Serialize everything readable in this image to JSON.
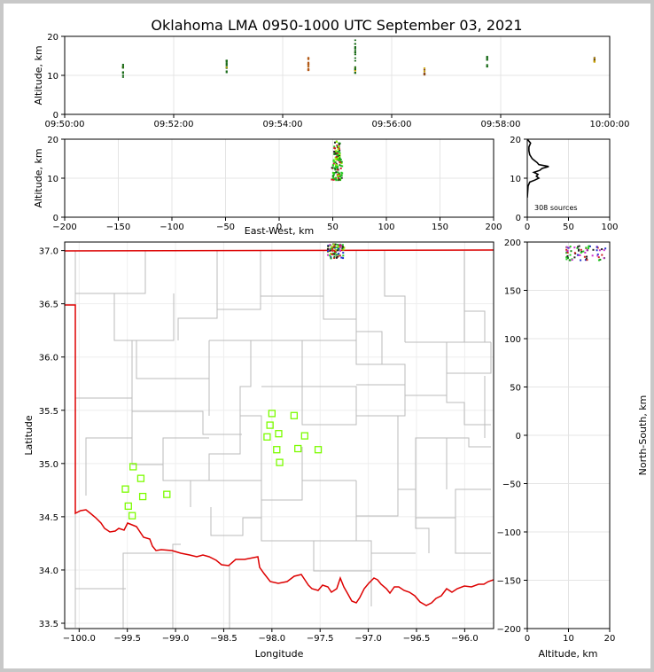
{
  "chart_data": [
    {
      "panel": "time-altitude",
      "type": "scatter",
      "title": "Oklahoma LMA 0950-1000 UTC September 03, 2021",
      "ylabel": "Altitude, km",
      "xlabel": "",
      "x_ticks": [
        "09:50:00",
        "09:52:00",
        "09:54:00",
        "09:56:00",
        "09:58:00",
        "10:00:00"
      ],
      "xlim_minutes": [
        0,
        10
      ],
      "ylim": [
        0,
        20
      ],
      "y_ticks": [
        "0",
        "10",
        "20"
      ],
      "grid": true,
      "bursts": [
        {
          "t": 1.07,
          "alt_min": 9.5,
          "alt_max": 13.0,
          "color": "#1a6b1a"
        },
        {
          "t": 2.97,
          "alt_min": 10.5,
          "alt_max": 14.0,
          "color": "#1a6b1a"
        },
        {
          "t": 4.47,
          "alt_min": 9.5,
          "alt_max": 14.8,
          "color": "#b35a1a"
        },
        {
          "t": 5.33,
          "alt_min": 10.5,
          "alt_max": 19.0,
          "color": "#1a6b1a"
        },
        {
          "t": 6.6,
          "alt_min": 10.0,
          "alt_max": 12.0,
          "color": "#8a4a1a"
        },
        {
          "t": 7.75,
          "alt_min": 11.5,
          "alt_max": 14.8,
          "color": "#1a6b1a"
        },
        {
          "t": 9.72,
          "alt_min": 12.5,
          "alt_max": 14.5,
          "color": "#5a3a1a"
        }
      ]
    },
    {
      "panel": "east-west-altitude",
      "type": "scatter",
      "xlabel": "East-West, km",
      "ylabel": "Altitude, km",
      "xlim": [
        -200,
        200
      ],
      "ylim": [
        0,
        20
      ],
      "x_ticks": [
        "−200",
        "−150",
        "−100",
        "−50",
        "0",
        "50",
        "100",
        "150",
        "200"
      ],
      "y_ticks": [
        "0",
        "10",
        "20"
      ],
      "grid": true,
      "cluster": {
        "x_center": 54,
        "x_spread": 7,
        "alt_min": 9.5,
        "alt_max": 19.5
      }
    },
    {
      "panel": "altitude-histogram",
      "type": "line",
      "xlim": [
        0,
        100
      ],
      "ylim": [
        0,
        20
      ],
      "x_ticks": [
        "0",
        "50",
        "100"
      ],
      "y_ticks": [
        "0",
        "10",
        "20"
      ],
      "annotation": "308 sources",
      "altitude_km": [
        5,
        8,
        9,
        9.5,
        10,
        10.5,
        11,
        11.5,
        12,
        12.5,
        13,
        13.5,
        14,
        14.5,
        15,
        16,
        17,
        18,
        19,
        20
      ],
      "counts": [
        0,
        1,
        3,
        9,
        14,
        11,
        13,
        8,
        15,
        18,
        26,
        14,
        12,
        9,
        6,
        3,
        2,
        2,
        4,
        0
      ]
    },
    {
      "panel": "plan-view",
      "type": "scatter",
      "xlabel": "Longitude",
      "ylabel": "Latitude",
      "xlim": [
        -100.15,
        -95.7
      ],
      "ylim": [
        33.45,
        37.08
      ],
      "x_ticks": [
        "−100.0",
        "−99.5",
        "−99.0",
        "−98.5",
        "−98.0",
        "−97.5",
        "−97.0",
        "−96.5",
        "−96.0"
      ],
      "y_ticks": [
        "33.5",
        "34.0",
        "34.5",
        "35.0",
        "35.5",
        "36.0",
        "36.5",
        "37.0"
      ],
      "stations": [
        {
          "lon": -99.52,
          "lat": 34.76
        },
        {
          "lon": -99.49,
          "lat": 34.6
        },
        {
          "lon": -99.44,
          "lat": 34.97
        },
        {
          "lon": -99.45,
          "lat": 34.51
        },
        {
          "lon": -99.36,
          "lat": 34.86
        },
        {
          "lon": -99.34,
          "lat": 34.69
        },
        {
          "lon": -99.09,
          "lat": 34.71
        },
        {
          "lon": -98.0,
          "lat": 35.47
        },
        {
          "lon": -98.02,
          "lat": 35.36
        },
        {
          "lon": -98.05,
          "lat": 35.25
        },
        {
          "lon": -97.93,
          "lat": 35.28
        },
        {
          "lon": -97.95,
          "lat": 35.13
        },
        {
          "lon": -97.92,
          "lat": 35.01
        },
        {
          "lon": -97.77,
          "lat": 35.45
        },
        {
          "lon": -97.73,
          "lat": 35.14
        },
        {
          "lon": -97.66,
          "lat": 35.26
        },
        {
          "lon": -97.52,
          "lat": 35.13
        }
      ],
      "source_cluster": {
        "lon_min": -97.42,
        "lon_max": -97.25,
        "lat_min": 36.92,
        "lat_max": 37.06
      },
      "colors": {
        "stations": "#7cfc00",
        "state_line": "#dd0000",
        "county_line": "#bbbbbb"
      }
    },
    {
      "panel": "altitude-north-south",
      "type": "scatter",
      "xlabel": "Altitude, km",
      "ylabel": "North-South, km",
      "xlim": [
        0,
        20
      ],
      "ylim": [
        -200,
        200
      ],
      "x_ticks": [
        "0",
        "10",
        "20"
      ],
      "y_ticks": [
        "−200",
        "−150",
        "−100",
        "−50",
        "0",
        "50",
        "100",
        "150",
        "200"
      ],
      "cluster": {
        "alt_min": 9.5,
        "alt_max": 19.5,
        "ns_min": 181,
        "ns_max": 196
      }
    }
  ]
}
